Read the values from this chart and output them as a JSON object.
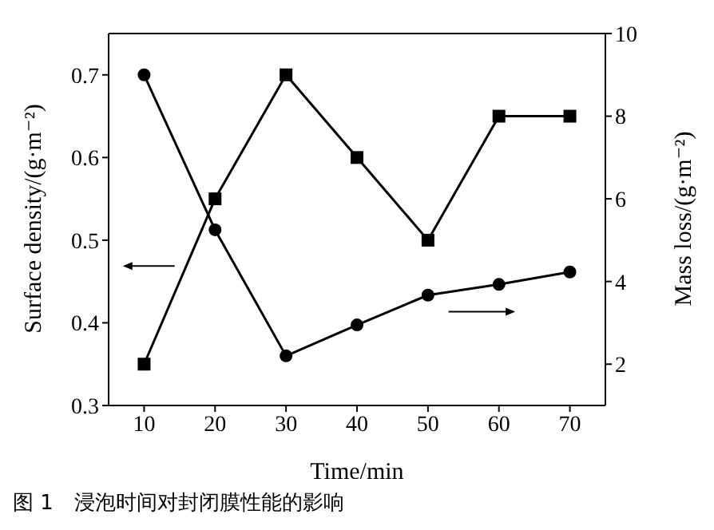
{
  "chart_data": {
    "type": "line",
    "title": "图 1　浸泡时间对封闭膜性能的影响",
    "xlabel": "Time/min",
    "ylabel": "Surface density/(g·m⁻²)",
    "y2label": "Mass loss/(g·m⁻²)",
    "x": [
      10,
      20,
      30,
      40,
      50,
      60,
      70
    ],
    "xlim": [
      5,
      75
    ],
    "xticks": [
      10,
      20,
      30,
      40,
      50,
      60,
      70
    ],
    "ylim": [
      0.3,
      0.75
    ],
    "yticks": [
      {
        "value": 0.3,
        "label": "0.3"
      },
      {
        "value": 0.4,
        "label": "0.4"
      },
      {
        "value": 0.5,
        "label": "0.5"
      },
      {
        "value": 0.6,
        "label": "0.6"
      },
      {
        "value": 0.7,
        "label": "0.7"
      }
    ],
    "y2lim": [
      1,
      10
    ],
    "y2ticks": [
      2,
      4,
      6,
      8,
      10
    ],
    "series": [
      {
        "color": "#000000",
        "marker": "square",
        "values": [
          0.35,
          0.55,
          0.7,
          0.6,
          0.5,
          0.65,
          0.65
        ]
      },
      {
        "color": "#000000",
        "marker": "circle",
        "axis": "y2",
        "values": [
          9.0,
          5.25,
          2.2,
          2.95,
          3.67,
          3.93,
          4.23
        ]
      }
    ],
    "grid": false,
    "legend": false,
    "line_style": "solid"
  }
}
